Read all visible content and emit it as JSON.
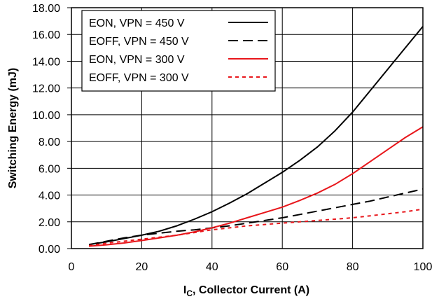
{
  "chart_data": {
    "type": "line",
    "xlabel_main": "I",
    "xlabel_sub": "C",
    "xlabel_rest": ", Collector Current (A)",
    "ylabel": "Switching Energy (mJ)",
    "xlim": [
      0,
      100
    ],
    "ylim": [
      0,
      18
    ],
    "xticks": [
      "0",
      "20",
      "40",
      "60",
      "80",
      "100"
    ],
    "yticks": [
      "0.00",
      "2.00",
      "4.00",
      "6.00",
      "8.00",
      "10.00",
      "12.00",
      "14.00",
      "16.00",
      "18.00"
    ],
    "grid": true,
    "legend_position": "top-left",
    "series": [
      {
        "name": "EON, VPN = 450 V",
        "color": "#000000",
        "dash": "solid",
        "x": [
          5,
          10,
          15,
          20,
          25,
          30,
          35,
          40,
          45,
          50,
          55,
          60,
          65,
          70,
          75,
          80,
          85,
          90,
          95,
          100
        ],
        "y": [
          0.3,
          0.5,
          0.75,
          1.0,
          1.3,
          1.7,
          2.2,
          2.75,
          3.4,
          4.1,
          4.9,
          5.7,
          6.6,
          7.6,
          8.8,
          10.2,
          11.8,
          13.4,
          15.0,
          16.6
        ]
      },
      {
        "name": "EOFF, VPN = 450 V",
        "color": "#000000",
        "dash": "long",
        "x": [
          5,
          10,
          15,
          20,
          25,
          30,
          35,
          40,
          45,
          50,
          55,
          60,
          65,
          70,
          75,
          80,
          85,
          90,
          95,
          100
        ],
        "y": [
          0.3,
          0.55,
          0.8,
          1.0,
          1.15,
          1.3,
          1.4,
          1.55,
          1.7,
          1.9,
          2.1,
          2.3,
          2.55,
          2.8,
          3.05,
          3.3,
          3.55,
          3.85,
          4.15,
          4.45
        ]
      },
      {
        "name": "EON, VPN = 300 V",
        "color": "#e8161b",
        "dash": "solid",
        "x": [
          5,
          10,
          15,
          20,
          25,
          30,
          35,
          40,
          45,
          50,
          55,
          60,
          65,
          70,
          75,
          80,
          85,
          90,
          95,
          100
        ],
        "y": [
          0.18,
          0.28,
          0.42,
          0.6,
          0.8,
          1.0,
          1.25,
          1.55,
          1.9,
          2.3,
          2.7,
          3.1,
          3.6,
          4.15,
          4.8,
          5.6,
          6.5,
          7.4,
          8.3,
          9.1
        ]
      },
      {
        "name": "EOFF, VPN = 300 V",
        "color": "#e8161b",
        "dash": "short",
        "x": [
          5,
          10,
          15,
          20,
          25,
          30,
          35,
          40,
          45,
          50,
          55,
          60,
          65,
          70,
          75,
          80,
          85,
          90,
          95,
          100
        ],
        "y": [
          0.22,
          0.4,
          0.55,
          0.7,
          0.85,
          1.0,
          1.2,
          1.4,
          1.55,
          1.7,
          1.8,
          1.9,
          2.0,
          2.1,
          2.2,
          2.3,
          2.45,
          2.6,
          2.75,
          2.95
        ]
      }
    ]
  }
}
